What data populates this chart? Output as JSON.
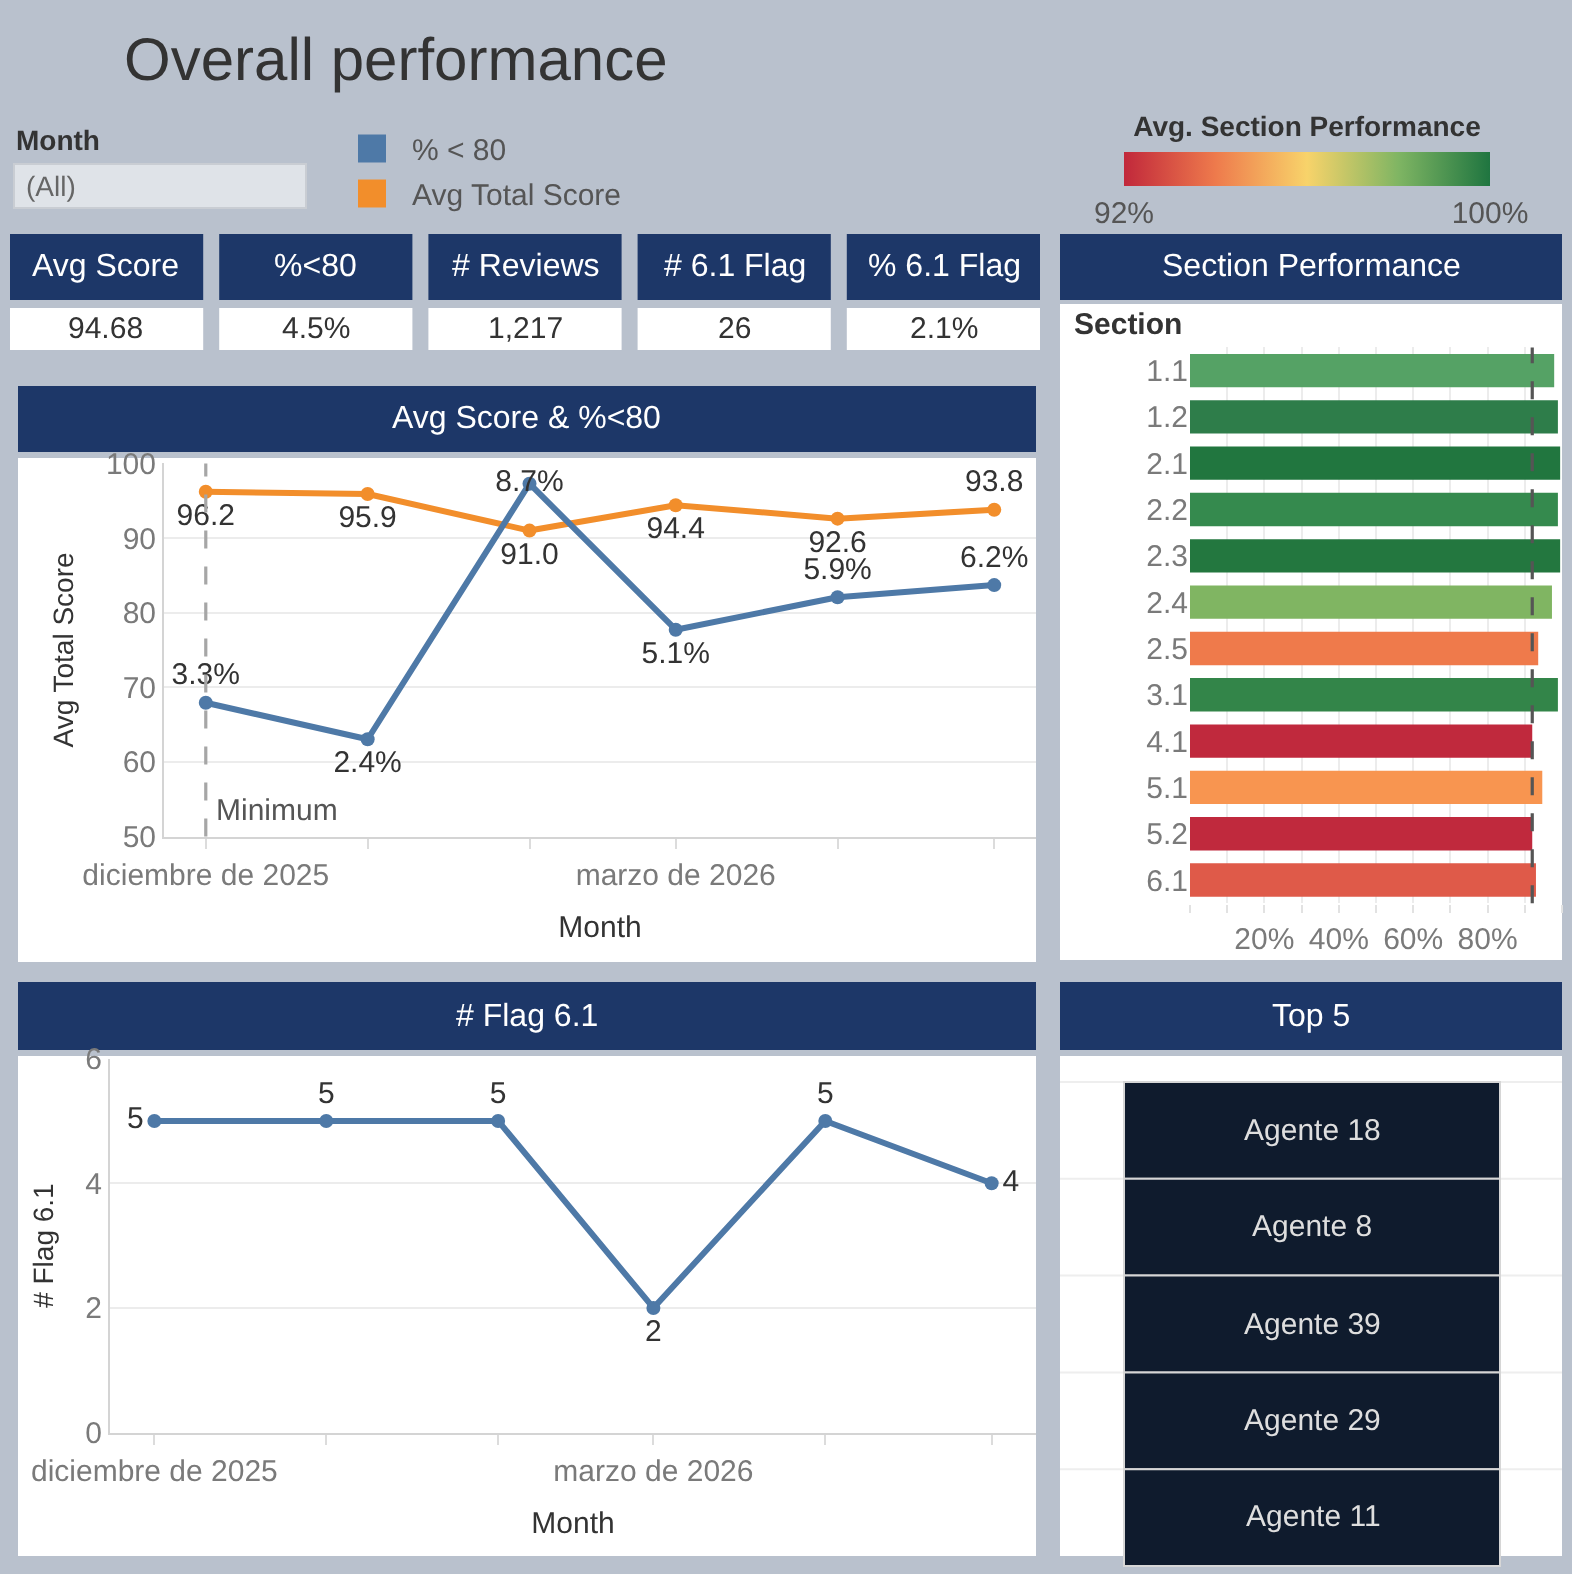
{
  "chart_data": [
    {
      "type": "other",
      "title": "Overall performance",
      "annotations": [
        "Month",
        "(All)"
      ],
      "categories": [
        "Avg Score",
        "%<80",
        "# Reviews",
        "# 6.1 Flag",
        "% 6.1 Flag"
      ],
      "value_labels": [
        "94.68",
        "4.5%",
        "1,217",
        "26",
        "2.1%"
      ]
    },
    {
      "type": "line",
      "title": "Avg Score & %<80",
      "xlabel": "Month",
      "ylabel": "Avg Total Score",
      "x": [
        "2025-12",
        "2026-01",
        "2026-02",
        "2026-03",
        "2026-04",
        "2026-05"
      ],
      "xlim": [
        "2025-11-23",
        "2026-05-09"
      ],
      "xticks": [
        {
          "value": "2025-12",
          "label": "diciembre de 2025"
        },
        {
          "value": "2026-01",
          "label": null
        },
        {
          "value": "2026-02",
          "label": null
        },
        {
          "value": "2026-03",
          "label": "marzo de 2026"
        },
        {
          "value": "2026-04",
          "label": null
        },
        {
          "value": "2026-05",
          "label": null
        }
      ],
      "ylim": [
        50,
        100
      ],
      "yticks": [
        50,
        60,
        70,
        80,
        90,
        100
      ],
      "y2lim": [
        0,
        9.2
      ],
      "series": [
        {
          "name": "% < 80",
          "color": "#4e79a7",
          "axis": "y2",
          "values": [
            3.3,
            2.4,
            8.7,
            5.1,
            5.9,
            6.2
          ],
          "value_labels": [
            "3.3%",
            "2.4%",
            "8.7%",
            "5.1%",
            "5.9%",
            "6.2%"
          ]
        },
        {
          "name": "Avg Total Score",
          "color": "#f28e2b",
          "values": [
            96.2,
            95.9,
            91.0,
            94.4,
            92.6,
            93.8
          ],
          "value_labels": [
            "96.2",
            "95.9",
            "91.0",
            "94.4",
            "92.6",
            "93.8"
          ]
        }
      ],
      "ref_lines": [
        {
          "axis": "x",
          "value": "2025-12",
          "label": "Minimum",
          "color": "#a6a6a6",
          "line_style": "dashed"
        }
      ],
      "grid": "y",
      "legend": "top left",
      "marker": "circle",
      "line_style": "solid"
    },
    {
      "type": "bar",
      "orientation": "horizontal",
      "title": "Section Performance",
      "ylabel": "Section",
      "categories": [
        "1.1",
        "1.2",
        "2.1",
        "2.2",
        "2.3",
        "2.4",
        "2.5",
        "3.1",
        "4.1",
        "5.1",
        "5.2",
        "6.1"
      ],
      "values": [
        97.9,
        98.9,
        99.5,
        98.9,
        99.5,
        97.3,
        93.6,
        98.9,
        92.0,
        94.7,
        92.0,
        93.0
      ],
      "colors": [
        "#55a265",
        "#2e7d4a",
        "#21763f",
        "#358a4e",
        "#23773f",
        "#80b562",
        "#ef7a4b",
        "#338549",
        "#c0293d",
        "#f89550",
        "#c0293d",
        "#df5a49"
      ],
      "xlim": [
        0,
        100
      ],
      "xticks": [
        {
          "value": 0,
          "label": null
        },
        {
          "value": 10,
          "label": null
        },
        {
          "value": 20,
          "label": "20%"
        },
        {
          "value": 30,
          "label": null
        },
        {
          "value": 40,
          "label": "40%"
        },
        {
          "value": 50,
          "label": null
        },
        {
          "value": 60,
          "label": "60%"
        },
        {
          "value": 70,
          "label": null
        },
        {
          "value": 80,
          "label": "80%"
        },
        {
          "value": 90,
          "label": null
        },
        {
          "value": 100,
          "label": null
        }
      ],
      "grid": "x",
      "ref_lines": [
        {
          "axis": "x",
          "value": 92,
          "color": "#555555",
          "line_style": "dashed"
        }
      ],
      "clabel": "Avg. Section Performance",
      "clim": [
        92,
        100
      ],
      "cticks": [
        {
          "value": 92,
          "label": "92%"
        },
        {
          "value": 100,
          "label": "100%"
        }
      ]
    },
    {
      "type": "line",
      "title": "# Flag 6.1",
      "xlabel": "Month",
      "ylabel": "# Flag 6.1",
      "x": [
        "2025-12",
        "2026-01",
        "2026-02",
        "2026-03",
        "2026-04",
        "2026-05"
      ],
      "xlim": [
        "2025-11-23",
        "2026-05-09"
      ],
      "xticks": [
        {
          "value": "2025-12",
          "label": "diciembre de 2025"
        },
        {
          "value": "2026-01",
          "label": null
        },
        {
          "value": "2026-02",
          "label": null
        },
        {
          "value": "2026-03",
          "label": "marzo de 2026"
        },
        {
          "value": "2026-04",
          "label": null
        },
        {
          "value": "2026-05",
          "label": null
        }
      ],
      "ylim": [
        0,
        6
      ],
      "yticks": [
        0,
        2,
        4,
        6
      ],
      "series": [
        {
          "color": "#4e79a7",
          "values": [
            5,
            5,
            5,
            2,
            5,
            4
          ]
        }
      ],
      "data_labels": true,
      "grid": "y",
      "marker": "circle",
      "line_style": "solid"
    },
    {
      "type": "other",
      "title": "Top 5",
      "categories": [
        "Agente 18",
        "Agente 8",
        "Agente 39",
        "Agente 29",
        "Agente 11"
      ]
    }
  ]
}
